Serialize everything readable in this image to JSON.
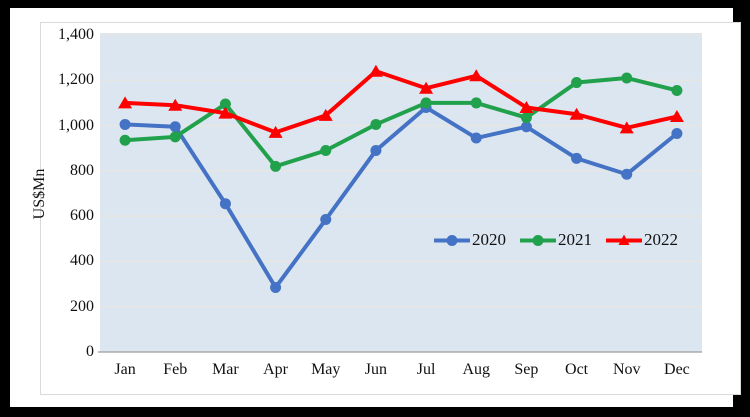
{
  "chart_data": {
    "type": "line",
    "title": "",
    "xlabel": "",
    "ylabel": "US$Mn",
    "ylim": [
      0,
      1400
    ],
    "ytick_step": 200,
    "ytick_labels": [
      "0",
      "200",
      "400",
      "600",
      "800",
      "1,000",
      "1,200",
      "1,400"
    ],
    "grid": true,
    "legend_position": "inside-center-right",
    "plot_bg_color": "#dce6f1",
    "grid_color": "#ece6da",
    "axis_line_color": "#9b9b9b",
    "categories": [
      "Jan",
      "Feb",
      "Mar",
      "Apr",
      "May",
      "Jun",
      "Jul",
      "Aug",
      "Sep",
      "Oct",
      "Nov",
      "Dec"
    ],
    "series": [
      {
        "name": "2020",
        "color": "#4472c4",
        "marker": "circle",
        "values": [
          1005,
          995,
          655,
          285,
          585,
          890,
          1080,
          945,
          995,
          855,
          785,
          965
        ]
      },
      {
        "name": "2021",
        "color": "#22a14d",
        "marker": "circle",
        "values": [
          935,
          950,
          1095,
          820,
          890,
          1005,
          1100,
          1100,
          1035,
          1190,
          1210,
          1155
        ]
      },
      {
        "name": "2022",
        "color": "#ff0000",
        "marker": "triangle",
        "values": [
          1100,
          1090,
          1055,
          970,
          1045,
          1240,
          1165,
          1220,
          1080,
          1050,
          990,
          1040
        ]
      }
    ]
  }
}
